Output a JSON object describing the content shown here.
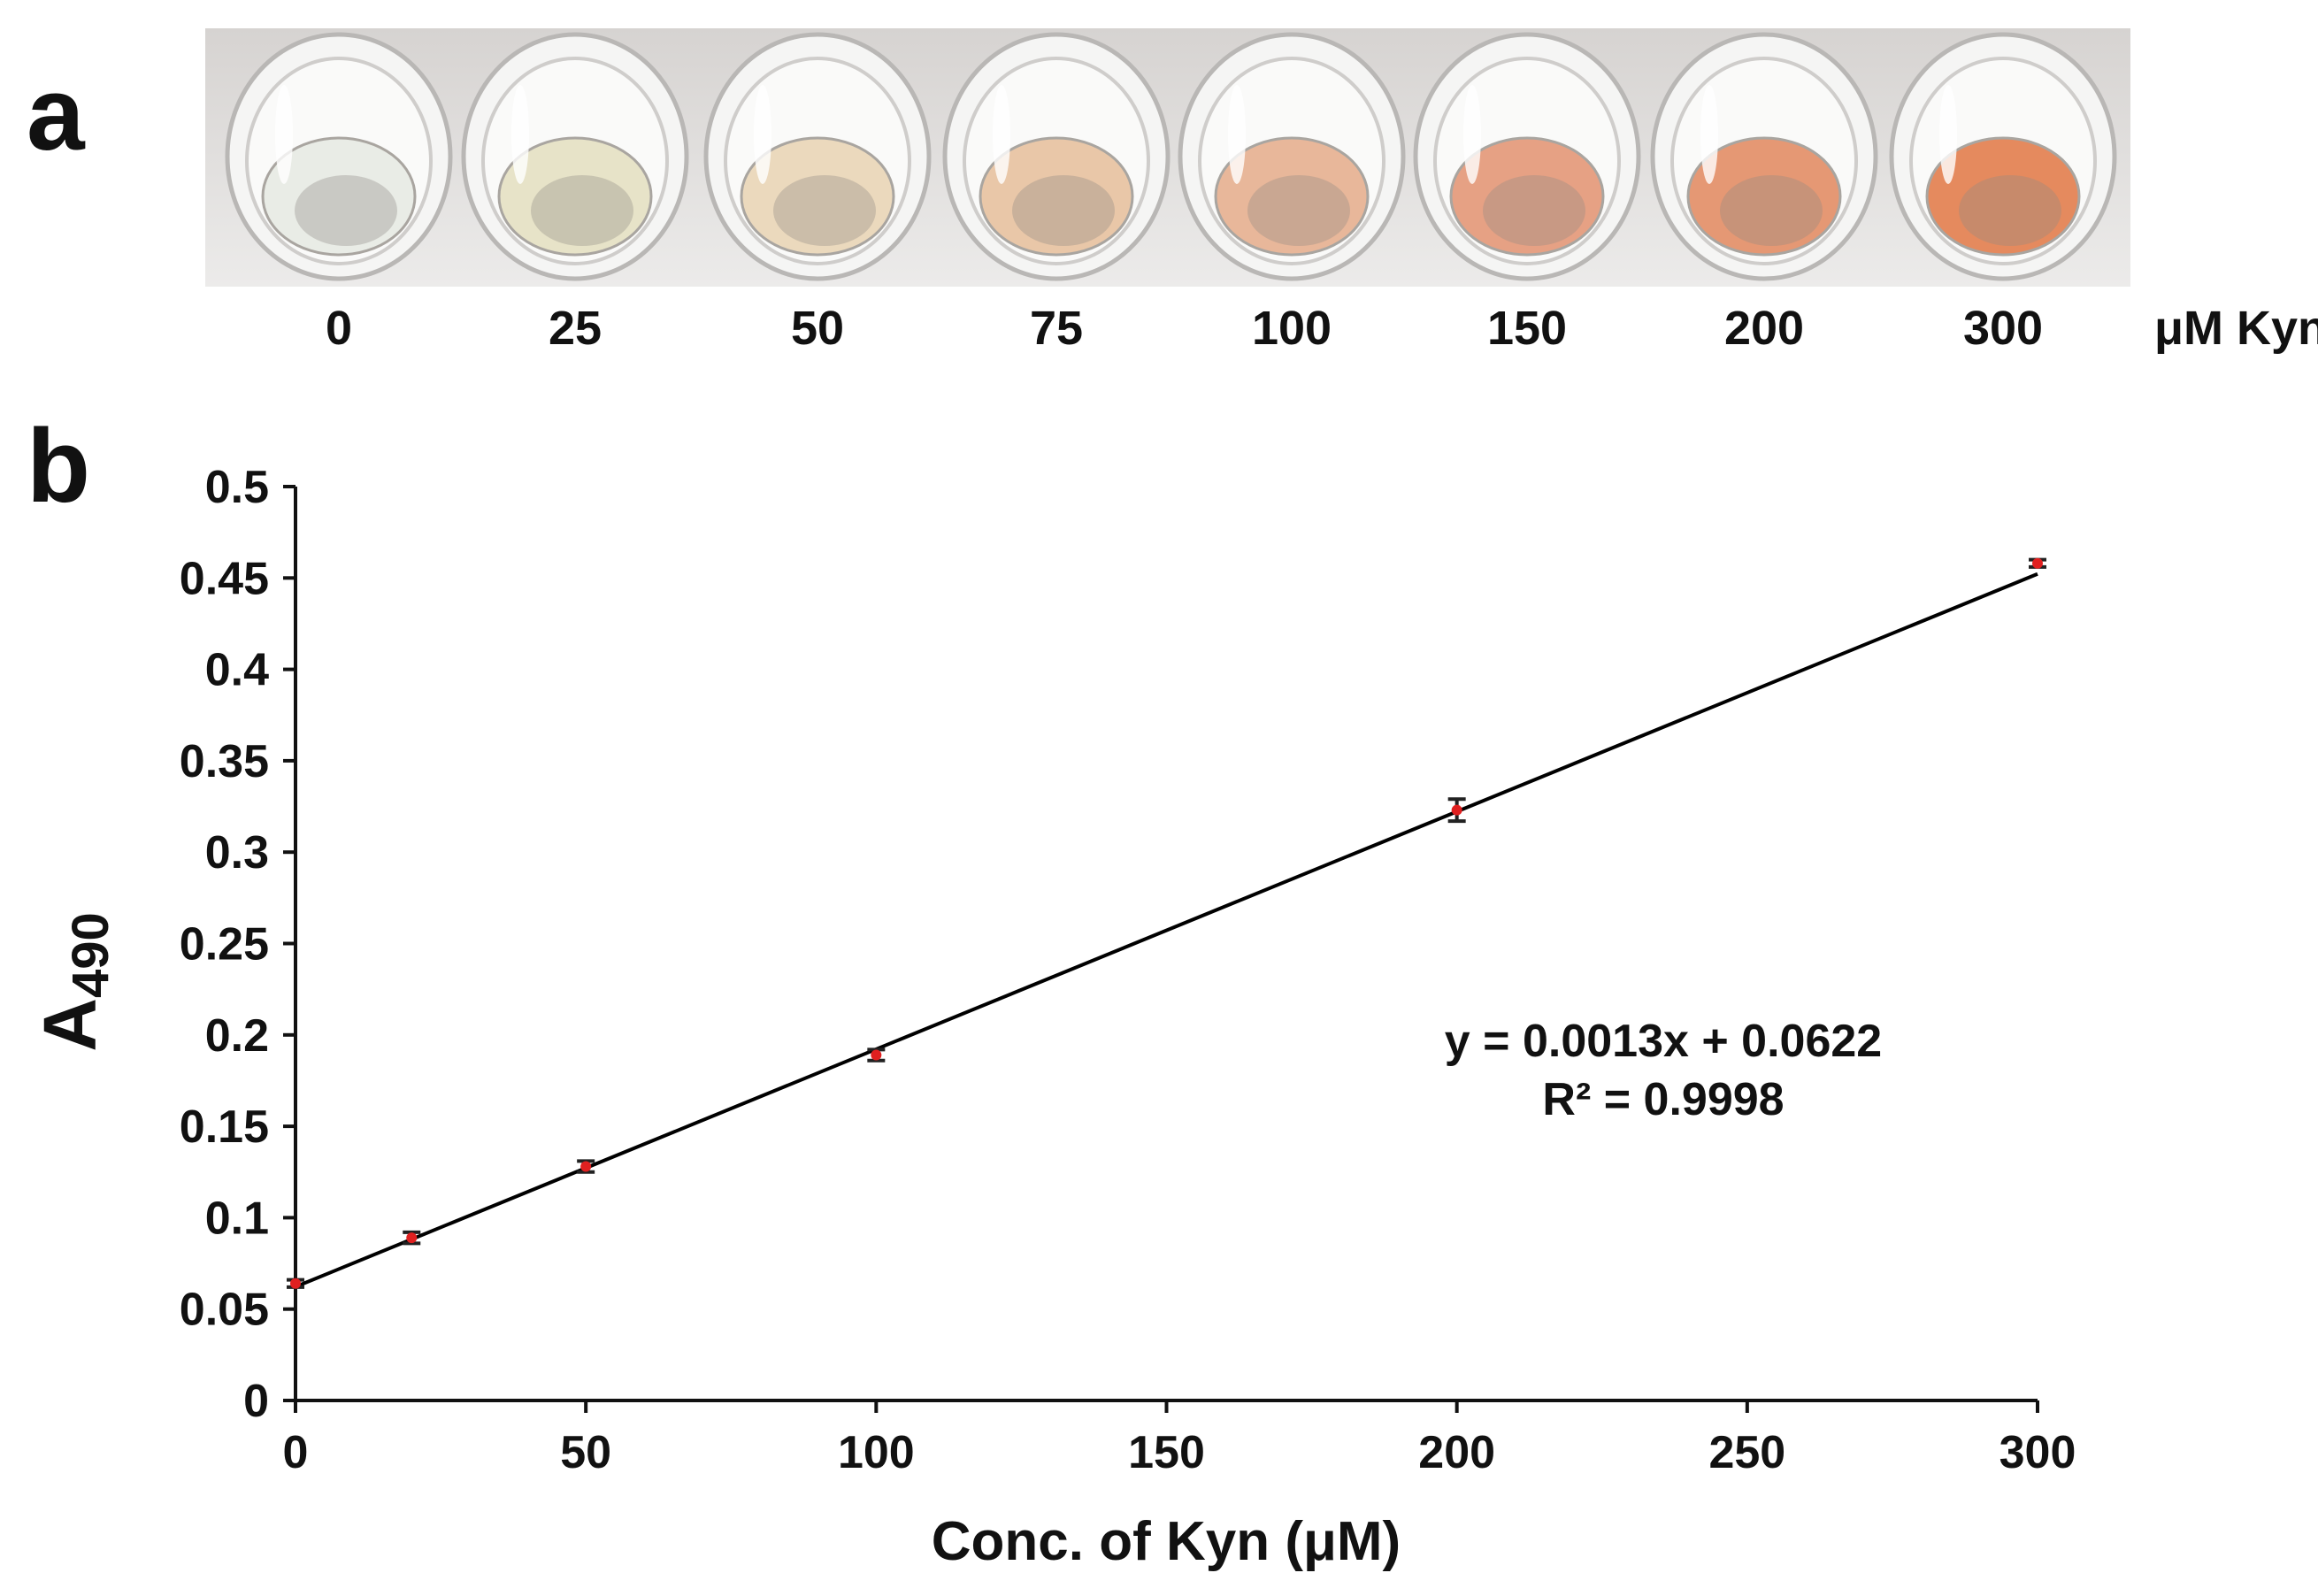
{
  "panel_a": {
    "letter": "a",
    "wells": [
      {
        "label": "0",
        "color": "#e9ece6"
      },
      {
        "label": "25",
        "color": "#e7e3c8"
      },
      {
        "label": "50",
        "color": "#ebd9bd"
      },
      {
        "label": "75",
        "color": "#e9c7a8"
      },
      {
        "label": "100",
        "color": "#e8b79a"
      },
      {
        "label": "150",
        "color": "#e6a184"
      },
      {
        "label": "200",
        "color": "#e59874"
      },
      {
        "label": "300",
        "color": "#e58a5e"
      }
    ],
    "unit": "μM Kyn"
  },
  "panel_b": {
    "letter": "b"
  },
  "chart_data": {
    "type": "scatter",
    "xlabel": "Conc. of Kyn (μM)",
    "ylabel": "A",
    "ylabel_subscript": "490",
    "xlim": [
      0,
      300
    ],
    "ylim": [
      0,
      0.5
    ],
    "x_ticks": [
      "0",
      "50",
      "100",
      "150",
      "200",
      "250",
      "300"
    ],
    "y_ticks": [
      "0",
      "0.05",
      "0.1",
      "0.15",
      "0.2",
      "0.25",
      "0.3",
      "0.35",
      "0.4",
      "0.45",
      "0.5"
    ],
    "grid": false,
    "legend": "none",
    "series": [
      {
        "x": [
          0,
          20,
          50,
          100,
          200,
          300
        ],
        "y": [
          0.064,
          0.089,
          0.128,
          0.189,
          0.323,
          0.458
        ],
        "error": [
          0.002,
          0.003,
          0.003,
          0.003,
          0.006,
          0.002
        ],
        "marker_color": "#e02020"
      }
    ],
    "trendline": {
      "slope": 0.0013,
      "intercept": 0.0622,
      "x_range": [
        0,
        300
      ],
      "color": "#000000"
    },
    "equation": "y = 0.0013x + 0.0622",
    "r_squared": "R² = 0.9998"
  }
}
